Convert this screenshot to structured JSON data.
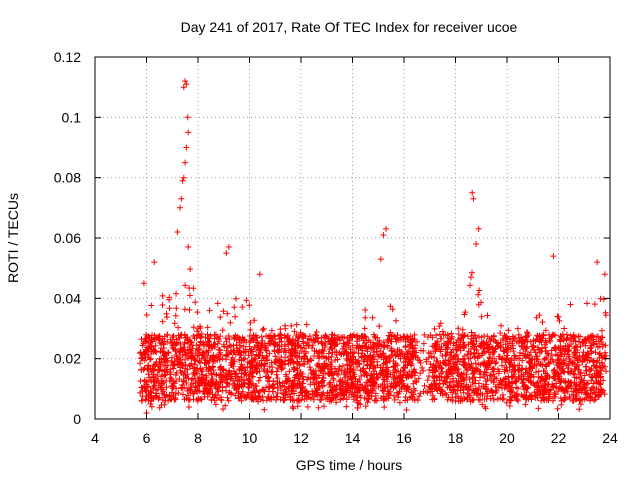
{
  "chart_data": {
    "type": "scatter",
    "title": "Day 241 of 2017, Rate Of TEC Index for receiver ucoe",
    "xlabel": "GPS time / hours",
    "ylabel": "ROTI / TECUs",
    "xlim": [
      4,
      24
    ],
    "ylim": [
      0,
      0.12
    ],
    "xticks": [
      "4",
      "6",
      "8",
      "10",
      "12",
      "14",
      "16",
      "18",
      "20",
      "22",
      "24"
    ],
    "yticks": [
      "0",
      "0.02",
      "0.04",
      "0.06",
      "0.08",
      "0.1",
      "0.12"
    ],
    "grid": true,
    "marker": "+",
    "color": "#ff0000",
    "series": [
      {
        "name": "ROTI",
        "x_range": [
          5.75,
          23.85
        ],
        "typical_band": [
          0.005,
          0.03
        ],
        "notable_points": [
          {
            "x": 7.5,
            "y": 0.112
          },
          {
            "x": 7.55,
            "y": 0.111
          },
          {
            "x": 7.45,
            "y": 0.11
          },
          {
            "x": 7.6,
            "y": 0.1
          },
          {
            "x": 7.62,
            "y": 0.095
          },
          {
            "x": 7.55,
            "y": 0.09
          },
          {
            "x": 7.5,
            "y": 0.085
          },
          {
            "x": 7.45,
            "y": 0.08
          },
          {
            "x": 7.4,
            "y": 0.079
          },
          {
            "x": 7.35,
            "y": 0.073
          },
          {
            "x": 7.3,
            "y": 0.07
          },
          {
            "x": 7.2,
            "y": 0.062
          },
          {
            "x": 6.3,
            "y": 0.052
          },
          {
            "x": 5.9,
            "y": 0.045
          },
          {
            "x": 9.2,
            "y": 0.057
          },
          {
            "x": 9.1,
            "y": 0.055
          },
          {
            "x": 10.4,
            "y": 0.048
          },
          {
            "x": 15.3,
            "y": 0.063
          },
          {
            "x": 15.2,
            "y": 0.061
          },
          {
            "x": 15.1,
            "y": 0.053
          },
          {
            "x": 18.65,
            "y": 0.075
          },
          {
            "x": 18.7,
            "y": 0.073
          },
          {
            "x": 18.9,
            "y": 0.063
          },
          {
            "x": 18.8,
            "y": 0.058
          },
          {
            "x": 18.6,
            "y": 0.047
          },
          {
            "x": 21.8,
            "y": 0.054
          },
          {
            "x": 23.5,
            "y": 0.052
          },
          {
            "x": 23.8,
            "y": 0.048
          },
          {
            "x": 16.1,
            "y": 0.003
          },
          {
            "x": 6.0,
            "y": 0.002
          }
        ]
      }
    ]
  }
}
